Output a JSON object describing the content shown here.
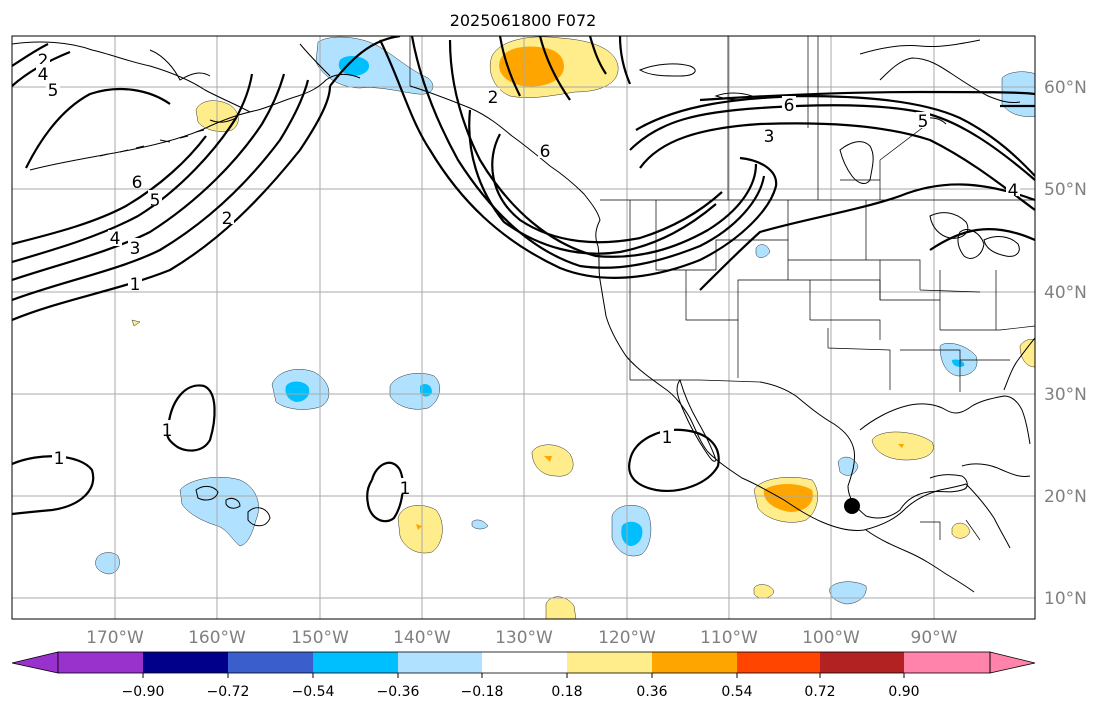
{
  "title": "2025061800 F072",
  "lon_labels": [
    "170°W",
    "160°W",
    "150°W",
    "140°W",
    "130°W",
    "120°W",
    "110°W",
    "100°W",
    "90°W"
  ],
  "lat_labels": [
    "60°N",
    "50°N",
    "40°N",
    "30°N",
    "20°N",
    "10°N"
  ],
  "colorbar": {
    "ticks": [
      "−0.90",
      "−0.72",
      "−0.54",
      "−0.36",
      "−0.18",
      "0.18",
      "0.36",
      "0.54",
      "0.72",
      "0.90"
    ],
    "colors": [
      "#9932cc",
      "#00008b",
      "#3a5fcd",
      "#00bfff",
      "#b0e2ff",
      "#ffffff",
      "#ffec8b",
      "#ffa500",
      "#ff4500",
      "#b22222",
      "#ff83aa"
    ]
  },
  "contour_labels": [
    "2",
    "4",
    "5",
    "6",
    "5",
    "4",
    "3",
    "2",
    "1",
    "2",
    "6",
    "6",
    "3",
    "5",
    "4",
    "1",
    "1",
    "1",
    "1"
  ],
  "fill_colors": {
    "light_blue": "#b0e2ff",
    "blue": "#00bfff",
    "light_yellow": "#ffec8b",
    "orange": "#ffa500"
  }
}
